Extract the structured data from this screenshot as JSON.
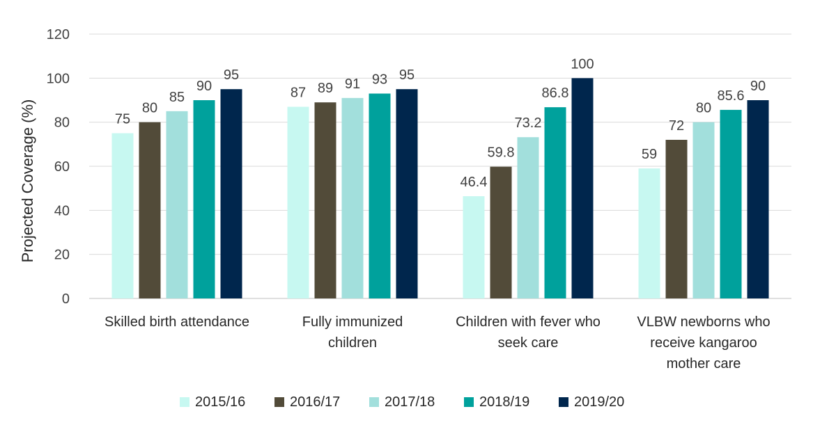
{
  "chart_data": {
    "type": "bar",
    "title": "",
    "xlabel": "",
    "ylabel": "Projected Coverage (%)",
    "ylim": [
      0,
      120
    ],
    "yticks": [
      0,
      20,
      40,
      60,
      80,
      100,
      120
    ],
    "grid": true,
    "legend_position": "bottom",
    "categories": [
      [
        "Skilled birth attendance"
      ],
      [
        "Fully immunized",
        "children"
      ],
      [
        "Children with fever who",
        "seek care"
      ],
      [
        "VLBW newborns who",
        "receive kangaroo",
        "mother care"
      ]
    ],
    "series": [
      {
        "name": "2015/16",
        "color": "#c7f8f1",
        "values": [
          75,
          87,
          46.4,
          59
        ],
        "labels": [
          "75",
          "87",
          "46.4",
          "59"
        ]
      },
      {
        "name": "2016/17",
        "color": "#524b39",
        "values": [
          80,
          89,
          59.8,
          72
        ],
        "labels": [
          "80",
          "89",
          "59.8",
          "72"
        ]
      },
      {
        "name": "2017/18",
        "color": "#a2dfdc",
        "values": [
          85,
          91,
          73.2,
          80
        ],
        "labels": [
          "85",
          "91",
          "73.2",
          "80"
        ]
      },
      {
        "name": "2018/19",
        "color": "#00a19c",
        "values": [
          90,
          93,
          86.8,
          85.6
        ],
        "labels": [
          "90",
          "93",
          "86.8",
          "85.6"
        ]
      },
      {
        "name": "2019/20",
        "color": "#00264d",
        "values": [
          95,
          95,
          100,
          90
        ],
        "labels": [
          "95",
          "95",
          "100",
          "90"
        ]
      }
    ]
  }
}
